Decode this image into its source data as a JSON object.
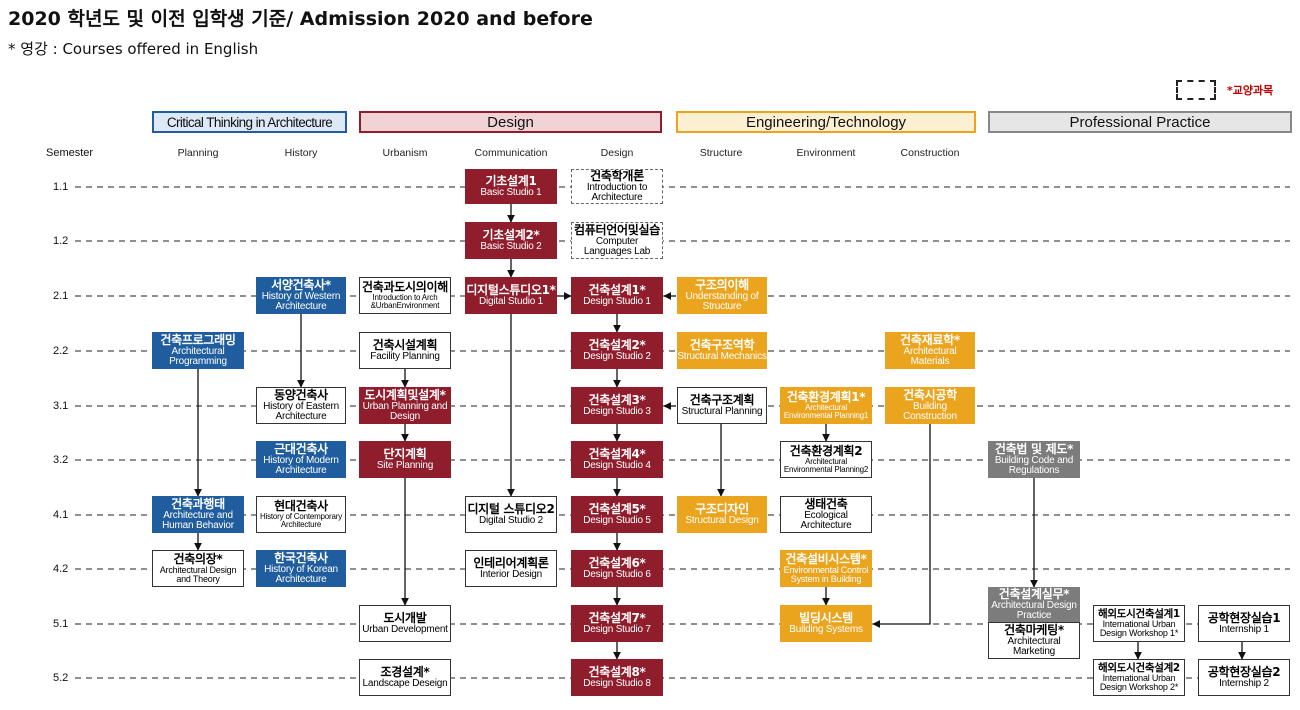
{
  "header": {
    "title": "2020 학년도 및 이전 입학생 기준/ Admission 2020 and before",
    "subtitle": "* 영강 : Courses offered in English"
  },
  "legend": {
    "label": "*교양과목"
  },
  "colors": {
    "design": "#8f1d2c",
    "thinking": "#1f5d9e",
    "engineering": "#eba41e",
    "practice": "#7c7c7c"
  },
  "categories": [
    {
      "label": "Critical Thinking in Architecture",
      "border": "#1f5d9e",
      "fill": "#dde9f6"
    },
    {
      "label": "Design",
      "border": "#8f1d2c",
      "fill": "#f1d3d6"
    },
    {
      "label": "Engineering/Technology",
      "border": "#eba41e",
      "fill": "#fcefd2"
    },
    {
      "label": "Professional Practice",
      "border": "#888888",
      "fill": "#e6e6e6"
    }
  ],
  "semester_label": "Semester",
  "columns": [
    "Planning",
    "History",
    "Urbanism",
    "Communication",
    "Design",
    "Structure",
    "Environment",
    "Construction"
  ],
  "semesters": [
    "1.1",
    "1.2",
    "2.1",
    "2.2",
    "3.1",
    "3.2",
    "4.1",
    "4.2",
    "5.1",
    "5.2"
  ],
  "courses": {
    "basic1": {
      "ko": "기초설계1",
      "en": "Basic Studio 1"
    },
    "intro": {
      "ko": "건축학개론",
      "en": "Introduction to Architecture"
    },
    "basic2": {
      "ko": "기초설계2*",
      "en": "Basic Studio 2"
    },
    "complab": {
      "ko": "컴퓨터언어및실습",
      "en": "Computer Languages Lab"
    },
    "west": {
      "ko": "서양건축사*",
      "en": "History of Western Architecture"
    },
    "archurban": {
      "ko": "건축과도시의이해",
      "en": "Introduction to Arch &UrbanEnvironment"
    },
    "digital1": {
      "ko": "디지털스튜디오1*",
      "en": "Digital Studio 1"
    },
    "ds1": {
      "ko": "건축설계1*",
      "en": "Design Studio 1"
    },
    "struct_und": {
      "ko": "구조의이해",
      "en": "Understanding of Structure"
    },
    "programming": {
      "ko": "건축프로그래밍",
      "en": "Architectural Programming"
    },
    "facility": {
      "ko": "건축시설계획",
      "en": "Facility Planning"
    },
    "ds2": {
      "ko": "건축설계2*",
      "en": "Design Studio 2"
    },
    "mechanics": {
      "ko": "건축구조역학",
      "en": "Structural Mechanics"
    },
    "materials": {
      "ko": "건축재료학*",
      "en": "Architectural Materials"
    },
    "east": {
      "ko": "동양건축사",
      "en": "History of Eastern Architecture"
    },
    "urbanplan": {
      "ko": "도시계획및설계*",
      "en": "Urban Planning and Design"
    },
    "ds3": {
      "ko": "건축설계3*",
      "en": "Design Studio 3"
    },
    "structplan": {
      "ko": "건축구조계획",
      "en": "Structural Planning"
    },
    "env1": {
      "ko": "건축환경계획1*",
      "en": "Architectural Environmental Planning1"
    },
    "construction": {
      "ko": "건축시공학",
      "en": "Building Construction"
    },
    "modern": {
      "ko": "근대건축사",
      "en": "History of Modern Architecture"
    },
    "site": {
      "ko": "단지계획",
      "en": "Site Planning"
    },
    "ds4": {
      "ko": "건축설계4*",
      "en": "Design Studio 4"
    },
    "env2": {
      "ko": "건축환경계획2",
      "en": "Architectural Environmental Planning2"
    },
    "code": {
      "ko": "건축법 및 제도*",
      "en": "Building Code and Regulations"
    },
    "behavior": {
      "ko": "건축과행태",
      "en": "Architecture and Human Behavior"
    },
    "contemporary": {
      "ko": "현대건축사",
      "en": "History of Contemporary Architecture"
    },
    "digital2": {
      "ko": "디지털 스튜디오2",
      "en": "Digital Studio 2"
    },
    "ds5": {
      "ko": "건축설계5*",
      "en": "Design Studio 5"
    },
    "structdesign": {
      "ko": "구조디자인",
      "en": "Structural Design"
    },
    "ecological": {
      "ko": "생태건축",
      "en": "Ecological Architecture"
    },
    "costume": {
      "ko": "건축의장*",
      "en": "Architectural Design and Theory"
    },
    "korean": {
      "ko": "한국건축사",
      "en": "History of Korean Architecture"
    },
    "interior": {
      "ko": "인테리어계획론",
      "en": "Interior Design"
    },
    "ds6": {
      "ko": "건축설계6*",
      "en": "Design Studio 6"
    },
    "envcontrol": {
      "ko": "건축설비시스템*",
      "en": "Environmental Control System in Building"
    },
    "urbandev": {
      "ko": "도시개발",
      "en": "Urban Development"
    },
    "ds7": {
      "ko": "건축설계7*",
      "en": "Design Studio 7"
    },
    "building": {
      "ko": "빌딩시스템",
      "en": "Building Systems"
    },
    "practice": {
      "ko": "건축설계실무*",
      "en": "Architectural Design Practice"
    },
    "marketing": {
      "ko": "건축마케팅*",
      "en": "Architectural Marketing"
    },
    "intl1": {
      "ko": "해외도시건축설계1",
      "en": "International Urban Design Workshop 1*"
    },
    "intern1": {
      "ko": "공학현장실습1",
      "en": "Internship 1"
    },
    "landscape": {
      "ko": "조경설계*",
      "en": "Landscape Deseign"
    },
    "ds8": {
      "ko": "건축설계8*",
      "en": "Design Studio 8"
    },
    "intl2": {
      "ko": "해외도시건축설계2",
      "en": "International Urban Design Workshop 2*"
    },
    "intern2": {
      "ko": "공학현장실습2",
      "en": "Internship 2"
    }
  }
}
